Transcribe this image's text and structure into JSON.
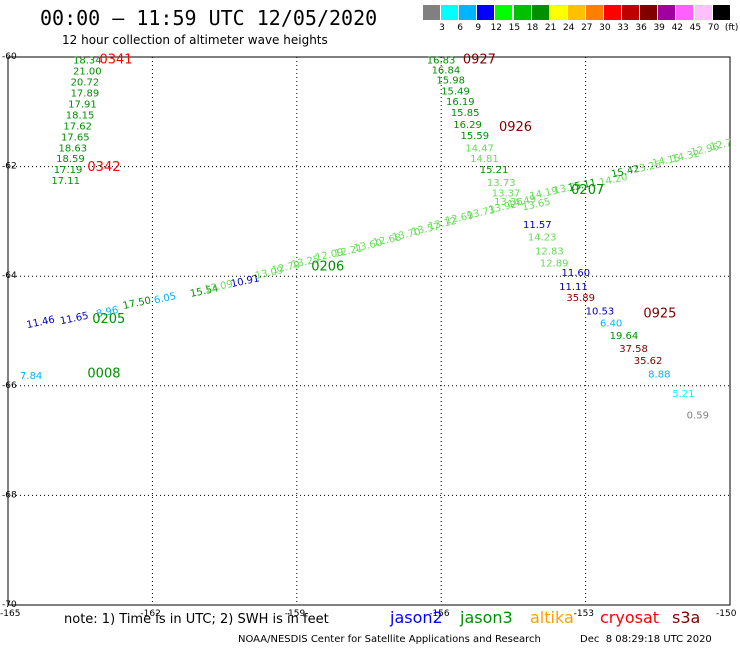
{
  "header": {
    "title": "00:00 – 11:59 UTC 12/05/2020",
    "subtitle": "12 hour collection of altimeter wave heights"
  },
  "legend": {
    "labels": [
      "3",
      "6",
      "9",
      "12",
      "15",
      "18",
      "21",
      "24",
      "27",
      "30",
      "33",
      "36",
      "39",
      "42",
      "45",
      "70",
      "(ft)"
    ],
    "colors": [
      "#808080",
      "#00ffff",
      "#00b4ff",
      "#0000ff",
      "#00ff00",
      "#00c000",
      "#009000",
      "#ffff00",
      "#ffc000",
      "#ff8000",
      "#ff0000",
      "#c00000",
      "#800000",
      "#a000a0",
      "#ff60ff",
      "#ffc0ff",
      "#000000"
    ]
  },
  "axes": {
    "lat_ticks": [
      "-60",
      "-62",
      "-64",
      "-66",
      "-68",
      "-70"
    ],
    "lon_ticks": [
      "-165",
      "-162",
      "-159",
      "-156",
      "-153",
      "-150"
    ]
  },
  "chart_data": {
    "type": "scatter",
    "lon_range": [
      -165,
      -150
    ],
    "lat_range": [
      -70,
      -60
    ],
    "time_labels": [
      {
        "text": "0341",
        "lon": -163.1,
        "lat": -60.12,
        "color": "#ff0000"
      },
      {
        "text": "0342",
        "lon": -163.35,
        "lat": -62.08,
        "color": "#ff0000"
      },
      {
        "text": "0927",
        "lon": -155.55,
        "lat": -60.12,
        "color": "#800000"
      },
      {
        "text": "0926",
        "lon": -154.8,
        "lat": -61.35,
        "color": "#800000"
      },
      {
        "text": "0207",
        "lon": -153.3,
        "lat": -62.5,
        "color": "#009000"
      },
      {
        "text": "0206",
        "lon": -158.7,
        "lat": -63.9,
        "color": "#009000"
      },
      {
        "text": "0205",
        "lon": -163.25,
        "lat": -64.85,
        "color": "#009000"
      },
      {
        "text": "0008",
        "lon": -163.35,
        "lat": -65.85,
        "color": "#009000"
      },
      {
        "text": "0925",
        "lon": -151.8,
        "lat": -64.75,
        "color": "#800000"
      }
    ],
    "track_cryosat_north": [
      {
        "v": "18.34",
        "lon": -163.65,
        "lat": -60.12,
        "color": "#009000"
      },
      {
        "v": "21.00",
        "lon": -163.65,
        "lat": -60.32,
        "color": "#009000"
      },
      {
        "v": "20.72",
        "lon": -163.7,
        "lat": -60.52,
        "color": "#009000"
      },
      {
        "v": "17.89",
        "lon": -163.7,
        "lat": -60.72,
        "color": "#009000"
      },
      {
        "v": "17.91",
        "lon": -163.75,
        "lat": -60.92,
        "color": "#009000"
      },
      {
        "v": "18.15",
        "lon": -163.8,
        "lat": -61.12,
        "color": "#009000"
      },
      {
        "v": "17.62",
        "lon": -163.85,
        "lat": -61.32,
        "color": "#009000"
      },
      {
        "v": "17.65",
        "lon": -163.9,
        "lat": -61.52,
        "color": "#009000"
      },
      {
        "v": "18.63",
        "lon": -163.95,
        "lat": -61.72,
        "color": "#009000"
      },
      {
        "v": "18.59",
        "lon": -164.0,
        "lat": -61.92,
        "color": "#009000"
      },
      {
        "v": "17.19",
        "lon": -164.05,
        "lat": -62.12,
        "color": "#009000"
      },
      {
        "v": "17.11",
        "lon": -164.1,
        "lat": -62.32,
        "color": "#009000"
      }
    ],
    "track_descending_east": [
      {
        "v": "16.83",
        "lon": -156.3,
        "lat": -60.12,
        "color": "#009000"
      },
      {
        "v": "16.84",
        "lon": -156.2,
        "lat": -60.3,
        "color": "#009000"
      },
      {
        "v": "15.98",
        "lon": -156.1,
        "lat": -60.48,
        "color": "#009000"
      },
      {
        "v": "15.49",
        "lon": -156.0,
        "lat": -60.68,
        "color": "#009000"
      },
      {
        "v": "16.19",
        "lon": -155.9,
        "lat": -60.88,
        "color": "#009000"
      },
      {
        "v": "15.85",
        "lon": -155.8,
        "lat": -61.08,
        "color": "#009000"
      },
      {
        "v": "16.29",
        "lon": -155.75,
        "lat": -61.3,
        "color": "#009000"
      },
      {
        "v": "15.59",
        "lon": -155.6,
        "lat": -61.5,
        "color": "#009000"
      },
      {
        "v": "14.47",
        "lon": -155.5,
        "lat": -61.72,
        "color": "#66dd55"
      },
      {
        "v": "14.81",
        "lon": -155.4,
        "lat": -61.92,
        "color": "#66dd55"
      },
      {
        "v": "15.21",
        "lon": -155.2,
        "lat": -62.12,
        "color": "#009000"
      },
      {
        "v": "13.73",
        "lon": -155.05,
        "lat": -62.35,
        "color": "#66dd55"
      },
      {
        "v": "13.37",
        "lon": -154.95,
        "lat": -62.55,
        "color": "#66dd55"
      },
      {
        "v": "13.36",
        "lon": -154.9,
        "lat": -62.7,
        "color": "#66dd55"
      },
      {
        "v": "11.57",
        "lon": -154.3,
        "lat": -63.12,
        "color": "#0000c0"
      },
      {
        "v": "14.23",
        "lon": -154.2,
        "lat": -63.35,
        "color": "#66dd55"
      },
      {
        "v": "12.83",
        "lon": -154.05,
        "lat": -63.6,
        "color": "#66dd55"
      },
      {
        "v": "12.89",
        "lon": -153.95,
        "lat": -63.82,
        "color": "#66dd55"
      },
      {
        "v": "11.60",
        "lon": -153.5,
        "lat": -64.0,
        "color": "#0000c0"
      },
      {
        "v": "11.11",
        "lon": -153.55,
        "lat": -64.25,
        "color": "#0000c0"
      },
      {
        "v": "35.89",
        "lon": -153.4,
        "lat": -64.45,
        "color": "#800000"
      },
      {
        "v": "10.53",
        "lon": -153.0,
        "lat": -64.7,
        "color": "#0000c0"
      },
      {
        "v": "6.40",
        "lon": -152.7,
        "lat": -64.92,
        "color": "#00b4ff"
      },
      {
        "v": "19.64",
        "lon": -152.5,
        "lat": -65.15,
        "color": "#009000"
      },
      {
        "v": "37.58",
        "lon": -152.3,
        "lat": -65.38,
        "color": "#800000"
      },
      {
        "v": "35.62",
        "lon": -152.0,
        "lat": -65.6,
        "color": "#800000"
      },
      {
        "v": "8.88",
        "lon": -151.7,
        "lat": -65.85,
        "color": "#00b4ff"
      },
      {
        "v": "5.21",
        "lon": -151.2,
        "lat": -66.2,
        "color": "#00ffff"
      },
      {
        "v": "0.59",
        "lon": -150.9,
        "lat": -66.6,
        "color": "#808080"
      }
    ],
    "track_ascending": [
      {
        "v": "11.46",
        "lon": -164.6,
        "lat": -64.95,
        "color": "#0000c0"
      },
      {
        "v": "11.65",
        "lon": -163.9,
        "lat": -64.88,
        "color": "#0000c0"
      },
      {
        "v": "8.96",
        "lon": -163.15,
        "lat": -64.75,
        "color": "#00b4ff"
      },
      {
        "v": "17.50",
        "lon": -162.6,
        "lat": -64.6,
        "color": "#009000"
      },
      {
        "v": "6.05",
        "lon": -161.95,
        "lat": -64.5,
        "color": "#00b4ff"
      },
      {
        "v": "15.54",
        "lon": -161.2,
        "lat": -64.38,
        "color": "#009000"
      },
      {
        "v": "12.09",
        "lon": -160.9,
        "lat": -64.3,
        "color": "#66dd55"
      },
      {
        "v": "10.91",
        "lon": -160.35,
        "lat": -64.2,
        "color": "#0000c0"
      },
      {
        "v": "13.09",
        "lon": -159.85,
        "lat": -64.05,
        "color": "#66dd55"
      },
      {
        "v": "12.79",
        "lon": -159.5,
        "lat": -63.95,
        "color": "#66dd55"
      },
      {
        "v": "13.25",
        "lon": -159.1,
        "lat": -63.85,
        "color": "#66dd55"
      },
      {
        "v": "12.09",
        "lon": -158.6,
        "lat": -63.72,
        "color": "#66dd55"
      },
      {
        "v": "12.21",
        "lon": -158.2,
        "lat": -63.65,
        "color": "#66dd55"
      },
      {
        "v": "13.60",
        "lon": -157.8,
        "lat": -63.55,
        "color": "#66dd55"
      },
      {
        "v": "12.68",
        "lon": -157.4,
        "lat": -63.45,
        "color": "#66dd55"
      },
      {
        "v": "13.70",
        "lon": -157.0,
        "lat": -63.35,
        "color": "#66dd55"
      },
      {
        "v": "13.57",
        "lon": -156.6,
        "lat": -63.25,
        "color": "#66dd55"
      },
      {
        "v": "13.12",
        "lon": -156.25,
        "lat": -63.15,
        "color": "#66dd55"
      },
      {
        "v": "12.69",
        "lon": -155.9,
        "lat": -63.05,
        "color": "#66dd55"
      },
      {
        "v": "13.73",
        "lon": -155.45,
        "lat": -62.95,
        "color": "#66dd55"
      },
      {
        "v": "13.92",
        "lon": -155.0,
        "lat": -62.85,
        "color": "#66dd55"
      },
      {
        "v": "14.49",
        "lon": -154.6,
        "lat": -62.75,
        "color": "#66dd55"
      },
      {
        "v": "13.65",
        "lon": -154.3,
        "lat": -62.8,
        "color": "#66dd55"
      },
      {
        "v": "14.19",
        "lon": -154.15,
        "lat": -62.6,
        "color": "#66dd55"
      },
      {
        "v": "13.25",
        "lon": -153.65,
        "lat": -62.5,
        "color": "#66dd55"
      },
      {
        "v": "15.11",
        "lon": -153.35,
        "lat": -62.45,
        "color": "#009000"
      },
      {
        "v": "14.20",
        "lon": -152.7,
        "lat": -62.35,
        "color": "#66dd55"
      },
      {
        "v": "15.42",
        "lon": -152.45,
        "lat": -62.2,
        "color": "#009000"
      },
      {
        "v": "13.25",
        "lon": -152.0,
        "lat": -62.12,
        "color": "#66dd55"
      },
      {
        "v": "14.15",
        "lon": -151.6,
        "lat": -62.0,
        "color": "#66dd55"
      },
      {
        "v": "14.32",
        "lon": -151.2,
        "lat": -61.92,
        "color": "#66dd55"
      },
      {
        "v": "12.96",
        "lon": -150.8,
        "lat": -61.8,
        "color": "#66dd55"
      },
      {
        "v": "12.7",
        "lon": -150.4,
        "lat": -61.7,
        "color": "#66dd55"
      }
    ],
    "track_far_west": [
      {
        "v": "7.84",
        "lon": -164.75,
        "lat": -65.88,
        "color": "#00b4ff"
      }
    ]
  },
  "footer": {
    "note": "note: 1) Time is in UTC; 2) SWH is in feet",
    "satellites": [
      {
        "name": "jason2",
        "color": "#0000ff"
      },
      {
        "name": "jason3",
        "color": "#009000"
      },
      {
        "name": "altika",
        "color": "#ffa000"
      },
      {
        "name": "cryosat",
        "color": "#ff0000"
      },
      {
        "name": "s3a",
        "color": "#800000"
      }
    ],
    "credit": "NOAA/NESDIS Center for Satellite Applications and Research",
    "stamp": "Dec  8 08:29:18 UTC 2020"
  }
}
